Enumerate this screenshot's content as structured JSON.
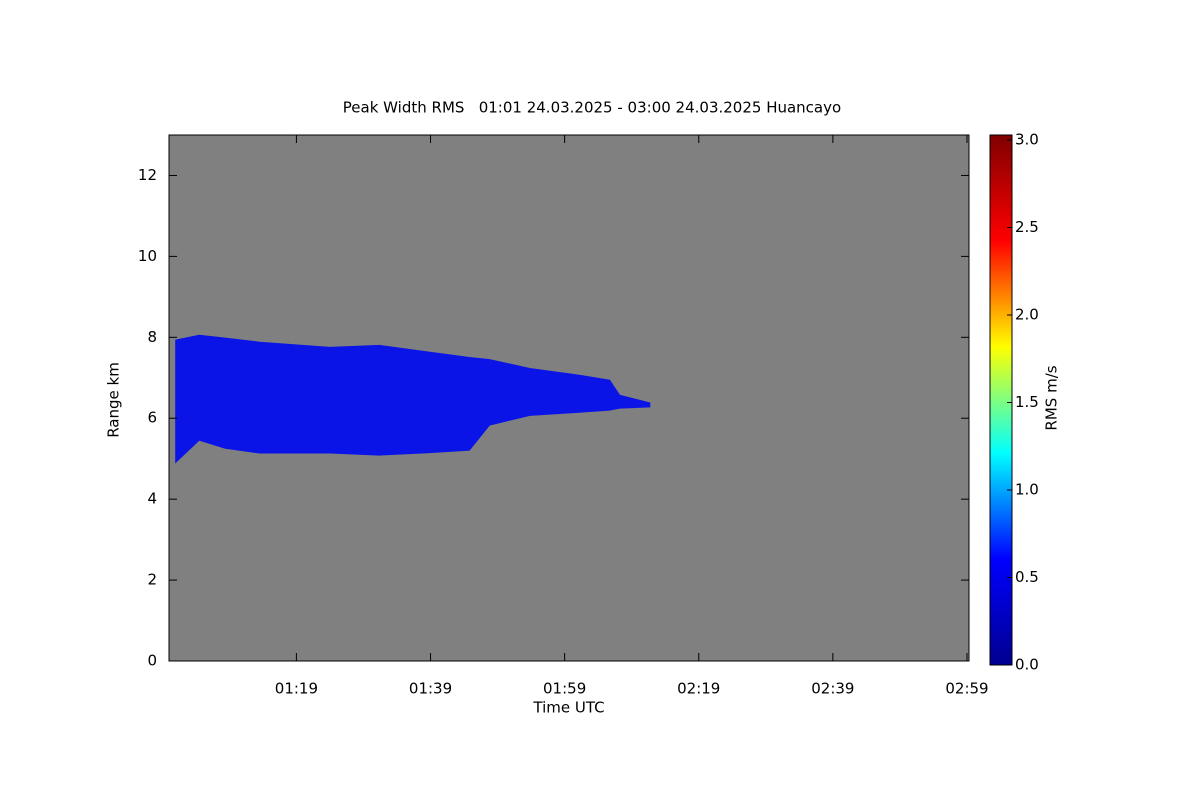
{
  "chart_data": {
    "type": "range-area",
    "title": "Peak Width RMS   01:01 24.03.2025 - 03:00 24.03.2025 Huancayo",
    "x_label": "Time UTC",
    "y_label": "Range km",
    "xlim": [
      60,
      179.3
    ],
    "xticks": [
      {
        "value": 79,
        "label": "01:19"
      },
      {
        "value": 99,
        "label": "01:39"
      },
      {
        "value": 119,
        "label": "01:59"
      },
      {
        "value": 139,
        "label": "02:19"
      },
      {
        "value": 159,
        "label": "02:39"
      },
      {
        "value": 179,
        "label": "02:59"
      }
    ],
    "ylim": [
      0,
      13
    ],
    "yticks": [
      0,
      2,
      4,
      6,
      8,
      10,
      12
    ],
    "background_color": "#808080",
    "echo": {
      "color": "#0a14e6",
      "x": [
        61,
        64.5,
        68.4,
        73.5,
        84,
        91.4,
        98.9,
        104.8,
        107.8,
        113.8,
        121.2,
        125.7,
        127.2,
        131.7
      ],
      "top": [
        7.93,
        8.05,
        7.98,
        7.88,
        7.75,
        7.8,
        7.63,
        7.5,
        7.45,
        7.23,
        7.06,
        6.94,
        6.57,
        6.38
      ],
      "bottom": [
        4.91,
        5.46,
        5.26,
        5.14,
        5.14,
        5.09,
        5.15,
        5.21,
        5.83,
        6.07,
        6.15,
        6.2,
        6.25,
        6.28
      ]
    },
    "colorbar": {
      "label": "RMS m/s",
      "lim": [
        0,
        3
      ],
      "colors": [
        "#00008f",
        "#0000ff",
        "#00ffff",
        "#ffff00",
        "#ff0000",
        "#800000"
      ],
      "ticks": [
        {
          "value": 0,
          "label": "0.0"
        },
        {
          "value": 0.5,
          "label": "0.5"
        },
        {
          "value": 1,
          "label": "1.0"
        },
        {
          "value": 1.5,
          "label": "1.5"
        },
        {
          "value": 2,
          "label": "2.0"
        },
        {
          "value": 2.5,
          "label": "2.5"
        },
        {
          "value": 3,
          "label": "3.0"
        }
      ]
    }
  }
}
